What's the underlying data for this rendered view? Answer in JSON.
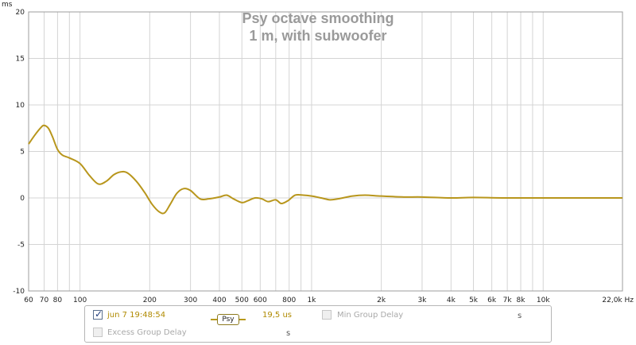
{
  "chart_data": {
    "type": "line",
    "title": "Psy octave smoothing",
    "subtitle": "1 m, with subwoofer",
    "ylabel": "ms",
    "xlabel": "Hz",
    "xscale": "log",
    "xlim": [
      60,
      22000
    ],
    "ylim": [
      -10,
      20
    ],
    "grid": true,
    "x_ticks": [
      {
        "v": 60,
        "label": "60"
      },
      {
        "v": 70,
        "label": "70"
      },
      {
        "v": 80,
        "label": "80"
      },
      {
        "v": 100,
        "label": "100"
      },
      {
        "v": 200,
        "label": "200"
      },
      {
        "v": 300,
        "label": "300"
      },
      {
        "v": 400,
        "label": "400"
      },
      {
        "v": 500,
        "label": "500"
      },
      {
        "v": 600,
        "label": "600"
      },
      {
        "v": 800,
        "label": "800"
      },
      {
        "v": 1000,
        "label": "1k"
      },
      {
        "v": 2000,
        "label": "2k"
      },
      {
        "v": 3000,
        "label": "3k"
      },
      {
        "v": 4000,
        "label": "4k"
      },
      {
        "v": 5000,
        "label": "5k"
      },
      {
        "v": 6000,
        "label": "6k"
      },
      {
        "v": 7000,
        "label": "7k"
      },
      {
        "v": 8000,
        "label": "8k"
      },
      {
        "v": 10000,
        "label": "10k"
      },
      {
        "v": 22000,
        "label": "22,0k Hz"
      }
    ],
    "x_minor": [
      90,
      700,
      900,
      9000
    ],
    "y_ticks": [
      {
        "v": 20,
        "label": "20"
      },
      {
        "v": 15,
        "label": "15"
      },
      {
        "v": 10,
        "label": "10"
      },
      {
        "v": 5,
        "label": "5"
      },
      {
        "v": 0,
        "label": "0"
      },
      {
        "v": -5,
        "label": "-5"
      },
      {
        "v": -10,
        "label": "-10"
      }
    ],
    "series": [
      {
        "color": "#b8961c",
        "points": [
          [
            60,
            5.8
          ],
          [
            64,
            6.8
          ],
          [
            68,
            7.6
          ],
          [
            70,
            7.8
          ],
          [
            73,
            7.5
          ],
          [
            76,
            6.6
          ],
          [
            80,
            5.2
          ],
          [
            84,
            4.6
          ],
          [
            90,
            4.3
          ],
          [
            100,
            3.7
          ],
          [
            110,
            2.4
          ],
          [
            120,
            1.5
          ],
          [
            130,
            1.8
          ],
          [
            140,
            2.5
          ],
          [
            150,
            2.8
          ],
          [
            160,
            2.7
          ],
          [
            175,
            1.8
          ],
          [
            190,
            0.6
          ],
          [
            205,
            -0.7
          ],
          [
            220,
            -1.5
          ],
          [
            232,
            -1.6
          ],
          [
            245,
            -0.7
          ],
          [
            262,
            0.5
          ],
          [
            280,
            1.0
          ],
          [
            300,
            0.8
          ],
          [
            330,
            -0.1
          ],
          [
            360,
            -0.1
          ],
          [
            400,
            0.1
          ],
          [
            430,
            0.3
          ],
          [
            460,
            -0.1
          ],
          [
            500,
            -0.5
          ],
          [
            530,
            -0.3
          ],
          [
            570,
            0.0
          ],
          [
            610,
            -0.1
          ],
          [
            650,
            -0.4
          ],
          [
            700,
            -0.2
          ],
          [
            740,
            -0.6
          ],
          [
            790,
            -0.3
          ],
          [
            850,
            0.3
          ],
          [
            920,
            0.3
          ],
          [
            1000,
            0.2
          ],
          [
            1100,
            0.0
          ],
          [
            1200,
            -0.2
          ],
          [
            1300,
            -0.1
          ],
          [
            1500,
            0.2
          ],
          [
            1700,
            0.3
          ],
          [
            2000,
            0.2
          ],
          [
            2500,
            0.1
          ],
          [
            3000,
            0.1
          ],
          [
            4000,
            0.0
          ],
          [
            5000,
            0.05
          ],
          [
            7000,
            0.0
          ],
          [
            10000,
            0.0
          ],
          [
            15000,
            0.0
          ],
          [
            22000,
            0.0
          ]
        ]
      }
    ]
  },
  "legend": {
    "row1": {
      "checkbox1_checked": true,
      "measurement": "jun 7 19:48:54",
      "badge": "Psy",
      "value": "19,5 us",
      "checkbox2_checked": false,
      "option2": "Min Group Delay",
      "unit2": "s"
    },
    "row2": {
      "checkbox_checked": false,
      "option": "Excess Group Delay",
      "unit": "s"
    }
  }
}
